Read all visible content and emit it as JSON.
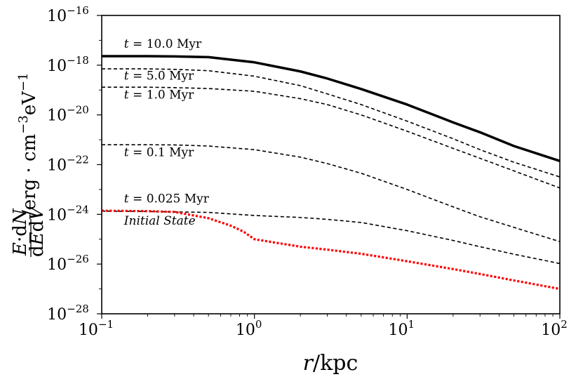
{
  "chart_data": {
    "type": "line",
    "title": "",
    "xlabel": "r/kpc",
    "ylabel": "E·dN / dEdV /erg · cm^-3 eV^-1",
    "xscale": "log",
    "yscale": "log",
    "xlim": [
      0.1,
      100
    ],
    "ylim": [
      1e-28,
      1e-16
    ],
    "grid": false,
    "x_ticks": [
      {
        "base": "10",
        "exp": "−1",
        "value": 0.1
      },
      {
        "base": "10",
        "exp": "0",
        "value": 1
      },
      {
        "base": "10",
        "exp": "1",
        "value": 10
      },
      {
        "base": "10",
        "exp": "2",
        "value": 100
      }
    ],
    "y_ticks": [
      {
        "base": "10",
        "exp": "−28",
        "value": 1e-28
      },
      {
        "base": "10",
        "exp": "−26",
        "value": 1e-26
      },
      {
        "base": "10",
        "exp": "−24",
        "value": 1e-24
      },
      {
        "base": "10",
        "exp": "−22",
        "value": 1e-22
      },
      {
        "base": "10",
        "exp": "−20",
        "value": 1e-20
      },
      {
        "base": "10",
        "exp": "−18",
        "value": 1e-18
      },
      {
        "base": "10",
        "exp": "−16",
        "value": 1e-16
      }
    ],
    "series": [
      {
        "name": "t = 10.0 Myr",
        "color": "#000000",
        "style": "solid",
        "width": 3.5,
        "points": [
          [
            0.1,
            2.3e-18
          ],
          [
            0.2,
            2.3e-18
          ],
          [
            0.3,
            2.25e-18
          ],
          [
            0.5,
            2.1e-18
          ],
          [
            1,
            1.3e-18
          ],
          [
            2,
            5.6e-19
          ],
          [
            3,
            2.9e-19
          ],
          [
            5,
            1.1e-19
          ],
          [
            10,
            2.6e-20
          ],
          [
            20,
            5e-21
          ],
          [
            30,
            2e-21
          ],
          [
            50,
            5.6e-22
          ],
          [
            100,
            1.4e-22
          ]
        ]
      },
      {
        "name": "t = 5.0 Myr",
        "color": "#000000",
        "style": "dashed",
        "width": 1.6,
        "points": [
          [
            0.1,
            7.1e-19
          ],
          [
            0.2,
            7.1e-19
          ],
          [
            0.3,
            6.8e-19
          ],
          [
            0.5,
            6e-19
          ],
          [
            1,
            3.6e-19
          ],
          [
            2,
            1.5e-19
          ],
          [
            3,
            7e-20
          ],
          [
            5,
            2.6e-20
          ],
          [
            10,
            5.6e-21
          ],
          [
            20,
            1.1e-21
          ],
          [
            30,
            4e-22
          ],
          [
            50,
            1.25e-22
          ],
          [
            100,
            3.2e-23
          ]
        ]
      },
      {
        "name": "t = 1.0 Myr",
        "color": "#000000",
        "style": "dashed",
        "width": 1.6,
        "points": [
          [
            0.1,
            1.3e-19
          ],
          [
            0.2,
            1.3e-19
          ],
          [
            0.3,
            1.25e-19
          ],
          [
            0.5,
            1.15e-19
          ],
          [
            1,
            8.9e-20
          ],
          [
            2,
            4.5e-20
          ],
          [
            3,
            2.6e-20
          ],
          [
            5,
            1e-20
          ],
          [
            10,
            2.2e-21
          ],
          [
            20,
            4.5e-22
          ],
          [
            30,
            1.8e-22
          ],
          [
            50,
            5.6e-23
          ],
          [
            100,
            1.15e-23
          ]
        ]
      },
      {
        "name": "t = 0.1 Myr",
        "color": "#000000",
        "style": "dashed",
        "width": 1.6,
        "points": [
          [
            0.1,
            6.3e-22
          ],
          [
            0.2,
            6.3e-22
          ],
          [
            0.3,
            6.2e-22
          ],
          [
            0.5,
            5.6e-22
          ],
          [
            1,
            4e-22
          ],
          [
            2,
            2e-22
          ],
          [
            3,
            1.1e-22
          ],
          [
            5,
            4.5e-23
          ],
          [
            10,
            1e-23
          ],
          [
            20,
            2e-24
          ],
          [
            30,
            8e-25
          ],
          [
            50,
            3e-25
          ],
          [
            100,
            8e-26
          ]
        ]
      },
      {
        "name": "t = 0.025 Myr",
        "color": "#000000",
        "style": "dashed",
        "width": 1.6,
        "points": [
          [
            0.1,
            1.35e-24
          ],
          [
            0.2,
            1.3e-24
          ],
          [
            0.5,
            1.2e-24
          ],
          [
            1,
            9e-25
          ],
          [
            2,
            7.5e-25
          ],
          [
            3,
            6.3e-25
          ],
          [
            5,
            4.7e-25
          ],
          [
            10,
            2.2e-25
          ],
          [
            20,
            8.9e-26
          ],
          [
            30,
            5e-26
          ],
          [
            50,
            2.5e-26
          ],
          [
            100,
            1.05e-26
          ]
        ]
      },
      {
        "name": "Initial State",
        "color": "#ff0000",
        "style": "dotted",
        "width": 3.2,
        "points": [
          [
            0.1,
            1.4e-24
          ],
          [
            0.2,
            1.35e-24
          ],
          [
            0.3,
            1.25e-24
          ],
          [
            0.5,
            7e-25
          ],
          [
            0.7,
            3.5e-25
          ],
          [
            0.85,
            2e-25
          ],
          [
            1,
            1e-25
          ],
          [
            2,
            5e-26
          ],
          [
            3,
            3.8e-26
          ],
          [
            5,
            2.6e-26
          ],
          [
            10,
            1.3e-26
          ],
          [
            20,
            6.3e-27
          ],
          [
            30,
            4e-27
          ],
          [
            50,
            2.2e-27
          ],
          [
            100,
            1e-27
          ]
        ]
      }
    ],
    "annotations": [
      {
        "text_italic": "t",
        "text_rest": " = 10.0 Myr",
        "x": 0.14,
        "y": 5e-18,
        "italic": false
      },
      {
        "text_italic": "t",
        "text_rest": " = 5.0 Myr",
        "x": 0.14,
        "y": 2.6e-19,
        "italic": false
      },
      {
        "text_italic": "t",
        "text_rest": " = 1.0 Myr",
        "x": 0.14,
        "y": 4.5e-20,
        "italic": false
      },
      {
        "text_italic": "t",
        "text_rest": " = 0.1 Myr",
        "x": 0.14,
        "y": 2.2e-22,
        "italic": false
      },
      {
        "text_italic": "t",
        "text_rest": " = 0.025 Myr",
        "x": 0.14,
        "y": 3e-24,
        "italic": false
      },
      {
        "text_italic": "Initial State",
        "text_rest": "",
        "x": 0.14,
        "y": 3.8e-25,
        "italic": true
      }
    ]
  }
}
